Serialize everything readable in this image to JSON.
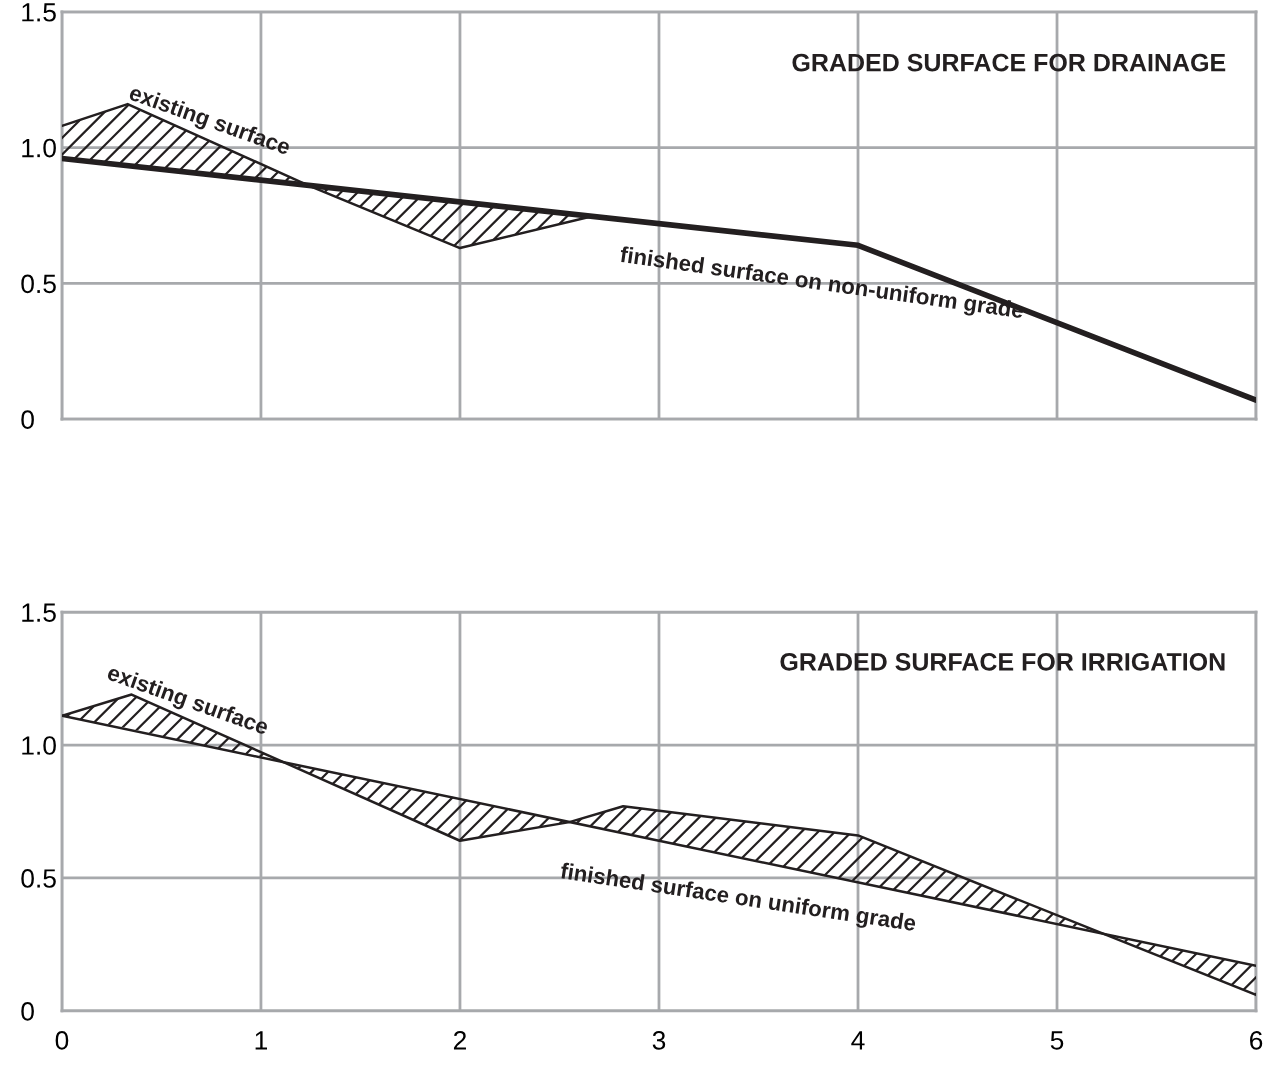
{
  "chart_data": [
    {
      "type": "line",
      "title": "GRADED SURFACE FOR DRAINAGE",
      "xlim": [
        0,
        6
      ],
      "ylim": [
        0,
        1.5
      ],
      "xticks": [
        0,
        1,
        2,
        3,
        4,
        5,
        6
      ],
      "yticks": [
        0,
        0.5,
        {
          "value": 1.0,
          "label": "1.0"
        },
        1.5
      ],
      "grid": true,
      "tick_labels": "y",
      "legend": false,
      "series": [
        {
          "name": "existing surface",
          "color": "#231f20",
          "x": [
            0,
            0.33,
            1.24,
            2,
            2.68
          ],
          "values": [
            1.08,
            1.16,
            0.86,
            0.63,
            0.75
          ],
          "lower": [
            0.96,
            0.93,
            0.86,
            0.63,
            0.75
          ],
          "upper": [
            1.08,
            1.16,
            0.86,
            0.8,
            0.75
          ]
        },
        {
          "name": "finished surface on non-uniform grade",
          "color": "#231f20",
          "x": [
            0,
            4,
            6
          ],
          "values": [
            0.96,
            0.64,
            0.07
          ]
        }
      ]
    },
    {
      "type": "line",
      "title": "GRADED SURFACE FOR IRRIGATION",
      "xlim": [
        0,
        6
      ],
      "ylim": [
        0,
        1.5
      ],
      "xticks": [
        0,
        1,
        2,
        3,
        4,
        5,
        6
      ],
      "yticks": [
        0,
        0.5,
        {
          "value": 1.0,
          "label": "1.0"
        },
        1.5
      ],
      "grid": true,
      "legend": false,
      "series": [
        {
          "name": "existing surface",
          "color": "#231f20",
          "x": [
            0,
            0.35,
            1.13,
            2,
            2.55,
            2.82,
            4,
            5.2,
            6
          ],
          "values": [
            1.11,
            1.19,
            0.93,
            0.64,
            0.71,
            0.77,
            0.66,
            0.3,
            0.06
          ],
          "lower": [
            1.11,
            1.06,
            0.93,
            0.64,
            0.71,
            0.67,
            0.48,
            0.3,
            0.06
          ],
          "upper": [
            1.11,
            1.19,
            0.93,
            0.8,
            0.71,
            0.77,
            0.66,
            0.3,
            0.17
          ]
        },
        {
          "name": "finished surface on uniform grade",
          "color": "#231f20",
          "x": [
            0,
            6
          ],
          "values": [
            1.11,
            0.17
          ]
        }
      ]
    }
  ]
}
